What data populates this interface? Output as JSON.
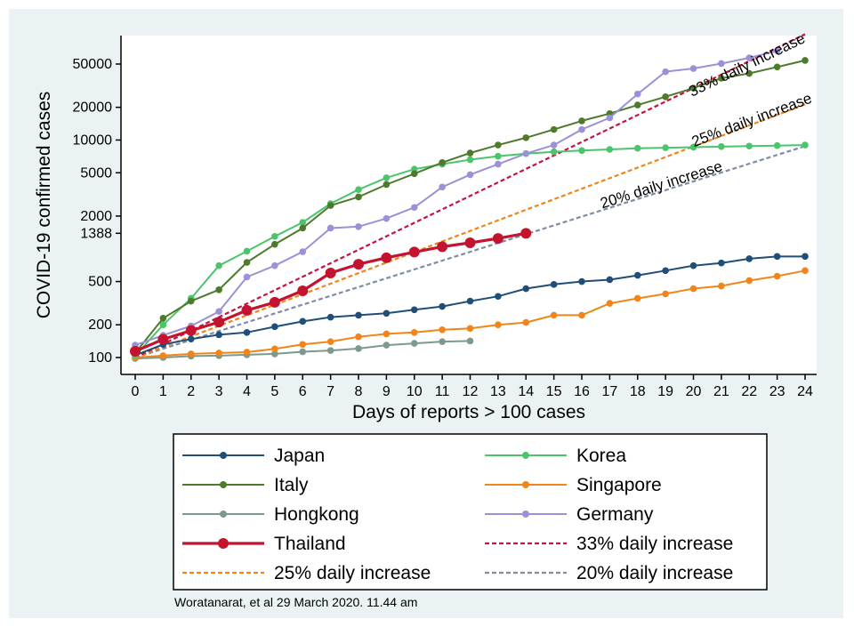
{
  "chart_data": {
    "type": "line",
    "y_scale": "log",
    "xlabel": "Days of reports > 100 cases",
    "ylabel": "COVID-19 confirmed cases",
    "x_ticks": [
      0,
      1,
      2,
      3,
      4,
      5,
      6,
      7,
      8,
      9,
      10,
      11,
      12,
      13,
      14,
      15,
      16,
      17,
      18,
      19,
      20,
      21,
      22,
      23,
      24
    ],
    "y_ticks": [
      100,
      200,
      500,
      1388,
      2000,
      5000,
      10000,
      20000,
      50000
    ],
    "xlim": [
      0,
      24
    ],
    "ylim": [
      88,
      100000
    ],
    "series": [
      {
        "name": "Japan",
        "color": "#1f4e79",
        "style": "solid",
        "marker": true,
        "x": [
          0,
          1,
          2,
          3,
          4,
          5,
          6,
          7,
          8,
          9,
          10,
          11,
          12,
          13,
          14,
          15,
          16,
          17,
          18,
          19,
          20,
          21,
          22,
          23,
          24
        ],
        "values": [
          105,
          132,
          148,
          162,
          170,
          192,
          215,
          235,
          245,
          255,
          275,
          295,
          330,
          365,
          430,
          470,
          500,
          520,
          570,
          630,
          700,
          740,
          810,
          850,
          850
        ]
      },
      {
        "name": "Korea",
        "color": "#4cc46c",
        "style": "solid",
        "marker": true,
        "x": [
          0,
          1,
          2,
          3,
          4,
          5,
          6,
          7,
          8,
          9,
          10,
          11,
          12,
          13,
          14,
          15,
          16,
          17,
          18,
          19,
          20,
          21,
          22,
          23,
          24
        ],
        "values": [
          104,
          200,
          350,
          700,
          950,
          1300,
          1750,
          2600,
          3500,
          4500,
          5400,
          6000,
          6600,
          7100,
          7500,
          7800,
          8000,
          8200,
          8400,
          8500,
          8600,
          8700,
          8800,
          8900,
          9000
        ]
      },
      {
        "name": "Italy",
        "color": "#4e7a2c",
        "style": "solid",
        "marker": true,
        "x": [
          0,
          1,
          2,
          3,
          4,
          5,
          6,
          7,
          8,
          9,
          10,
          11,
          12,
          13,
          14,
          15,
          16,
          17,
          18,
          19,
          20,
          21,
          22,
          23,
          24
        ],
        "values": [
          110,
          230,
          330,
          420,
          750,
          1100,
          1550,
          2500,
          3000,
          3900,
          4900,
          6200,
          7600,
          9000,
          10500,
          12500,
          15000,
          17500,
          21000,
          25000,
          30000,
          37000,
          41000,
          47000,
          54000
        ]
      },
      {
        "name": "Singapore",
        "color": "#f0861a",
        "style": "solid",
        "marker": true,
        "x": [
          0,
          1,
          2,
          3,
          4,
          5,
          6,
          7,
          8,
          9,
          10,
          11,
          12,
          13,
          14,
          15,
          16,
          17,
          18,
          19,
          20,
          21,
          22,
          23,
          24
        ],
        "values": [
          100,
          104,
          108,
          110,
          112,
          120,
          132,
          140,
          155,
          165,
          170,
          180,
          185,
          200,
          210,
          245,
          245,
          315,
          350,
          385,
          430,
          455,
          510,
          560,
          630
        ]
      },
      {
        "name": "Hongkong",
        "color": "#7b9a8c",
        "style": "solid",
        "marker": true,
        "x": [
          0,
          1,
          2,
          3,
          4,
          5,
          6,
          7,
          8,
          9,
          10,
          11,
          12
        ],
        "values": [
          98,
          100,
          103,
          104,
          106,
          108,
          113,
          116,
          121,
          130,
          135,
          140,
          142
        ]
      },
      {
        "name": "Germany",
        "color": "#9a91d6",
        "style": "solid",
        "marker": true,
        "x": [
          0,
          1,
          2,
          3,
          4,
          5,
          6,
          7,
          8,
          9,
          10,
          11,
          12,
          13,
          14,
          15,
          16,
          17,
          18,
          19,
          20,
          21,
          22,
          23
        ],
        "values": [
          130,
          160,
          195,
          265,
          550,
          700,
          940,
          1550,
          1600,
          1900,
          2400,
          3700,
          4800,
          6000,
          7500,
          9000,
          12500,
          16000,
          26500,
          42500,
          45500,
          50500,
          57000,
          66000
        ]
      },
      {
        "name": "Thailand",
        "color": "#c4132f",
        "style": "solid",
        "marker": true,
        "thick": true,
        "x": [
          0,
          1,
          2,
          3,
          4,
          5,
          6,
          7,
          8,
          9,
          10,
          11,
          12,
          13,
          14
        ],
        "values": [
          114,
          147,
          177,
          212,
          272,
          322,
          411,
          599,
          721,
          827,
          934,
          1045,
          1136,
          1245,
          1388
        ]
      },
      {
        "name": "33% daily increase",
        "color": "#c4133f",
        "style": "dashed",
        "marker": false,
        "x": [
          0,
          24
        ],
        "values": [
          100,
          94000
        ]
      },
      {
        "name": "25% daily increase",
        "color": "#f0861a",
        "style": "dashed",
        "marker": false,
        "x": [
          0,
          24
        ],
        "values": [
          100,
          21300
        ]
      },
      {
        "name": "20% daily increase",
        "color": "#7f8ca8",
        "style": "dashed",
        "marker": false,
        "x": [
          0,
          24
        ],
        "values": [
          100,
          8800
        ]
      }
    ],
    "annotations": [
      {
        "text": "33% daily increase",
        "series": "33% daily increase"
      },
      {
        "text": "25% daily increase",
        "series": "25% daily increase"
      },
      {
        "text": "20% daily increase",
        "series": "20% daily increase"
      }
    ],
    "legend": {
      "position": "bottom",
      "entries": [
        "Japan",
        "Korea",
        "Italy",
        "Singapore",
        "Hongkong",
        "Germany",
        "Thailand",
        "33% daily increase",
        "25% daily increase",
        "20% daily increase"
      ]
    }
  },
  "credit": "Woratanarat, et al 29 March 2020. 11.44 am"
}
